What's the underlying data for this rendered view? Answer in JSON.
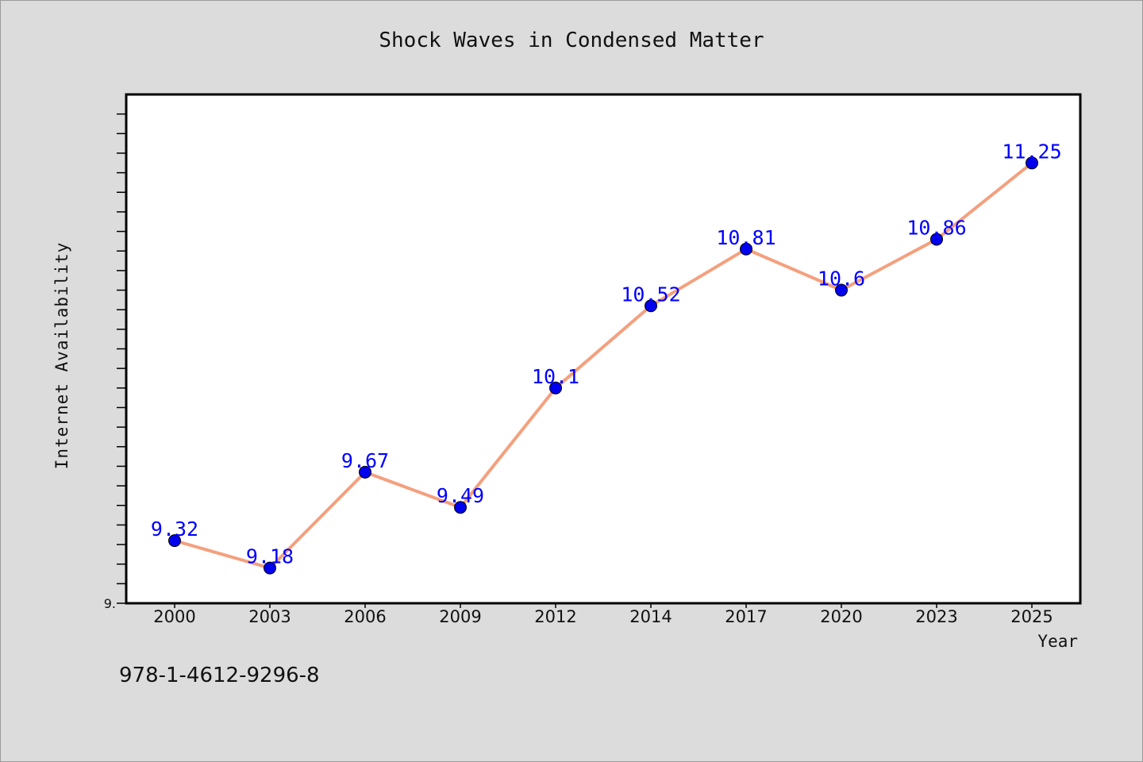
{
  "chart_data": {
    "type": "line",
    "title": "Shock Waves in Condensed Matter",
    "xlabel": "Year",
    "ylabel": "Internet Availability",
    "categories": [
      "2000",
      "2003",
      "2006",
      "2009",
      "2012",
      "2014",
      "2017",
      "2020",
      "2023",
      "2025"
    ],
    "series": [
      {
        "values": [
          9.32,
          9.18,
          9.67,
          9.49,
          10.1,
          10.52,
          10.81,
          10.6,
          10.86,
          11.25
        ],
        "data_labels": [
          "9.32",
          "9.18",
          "9.67",
          "9.49",
          "10.1",
          "10.52",
          "10.81",
          "10.6",
          "10.86",
          "11.25"
        ],
        "line_color": "#f4a07e",
        "marker_color": "#0000ee",
        "label_color": "#0000ff"
      }
    ],
    "ylim": [
      9.0,
      11.6
    ],
    "ytick_label": "9.",
    "grid": false,
    "legend": "none"
  },
  "footer": {
    "isbn": "978-1-4612-9296-8"
  },
  "colors": {
    "background": "#dcdcdc",
    "plot_background": "#ffffff",
    "axis": "#000000"
  }
}
